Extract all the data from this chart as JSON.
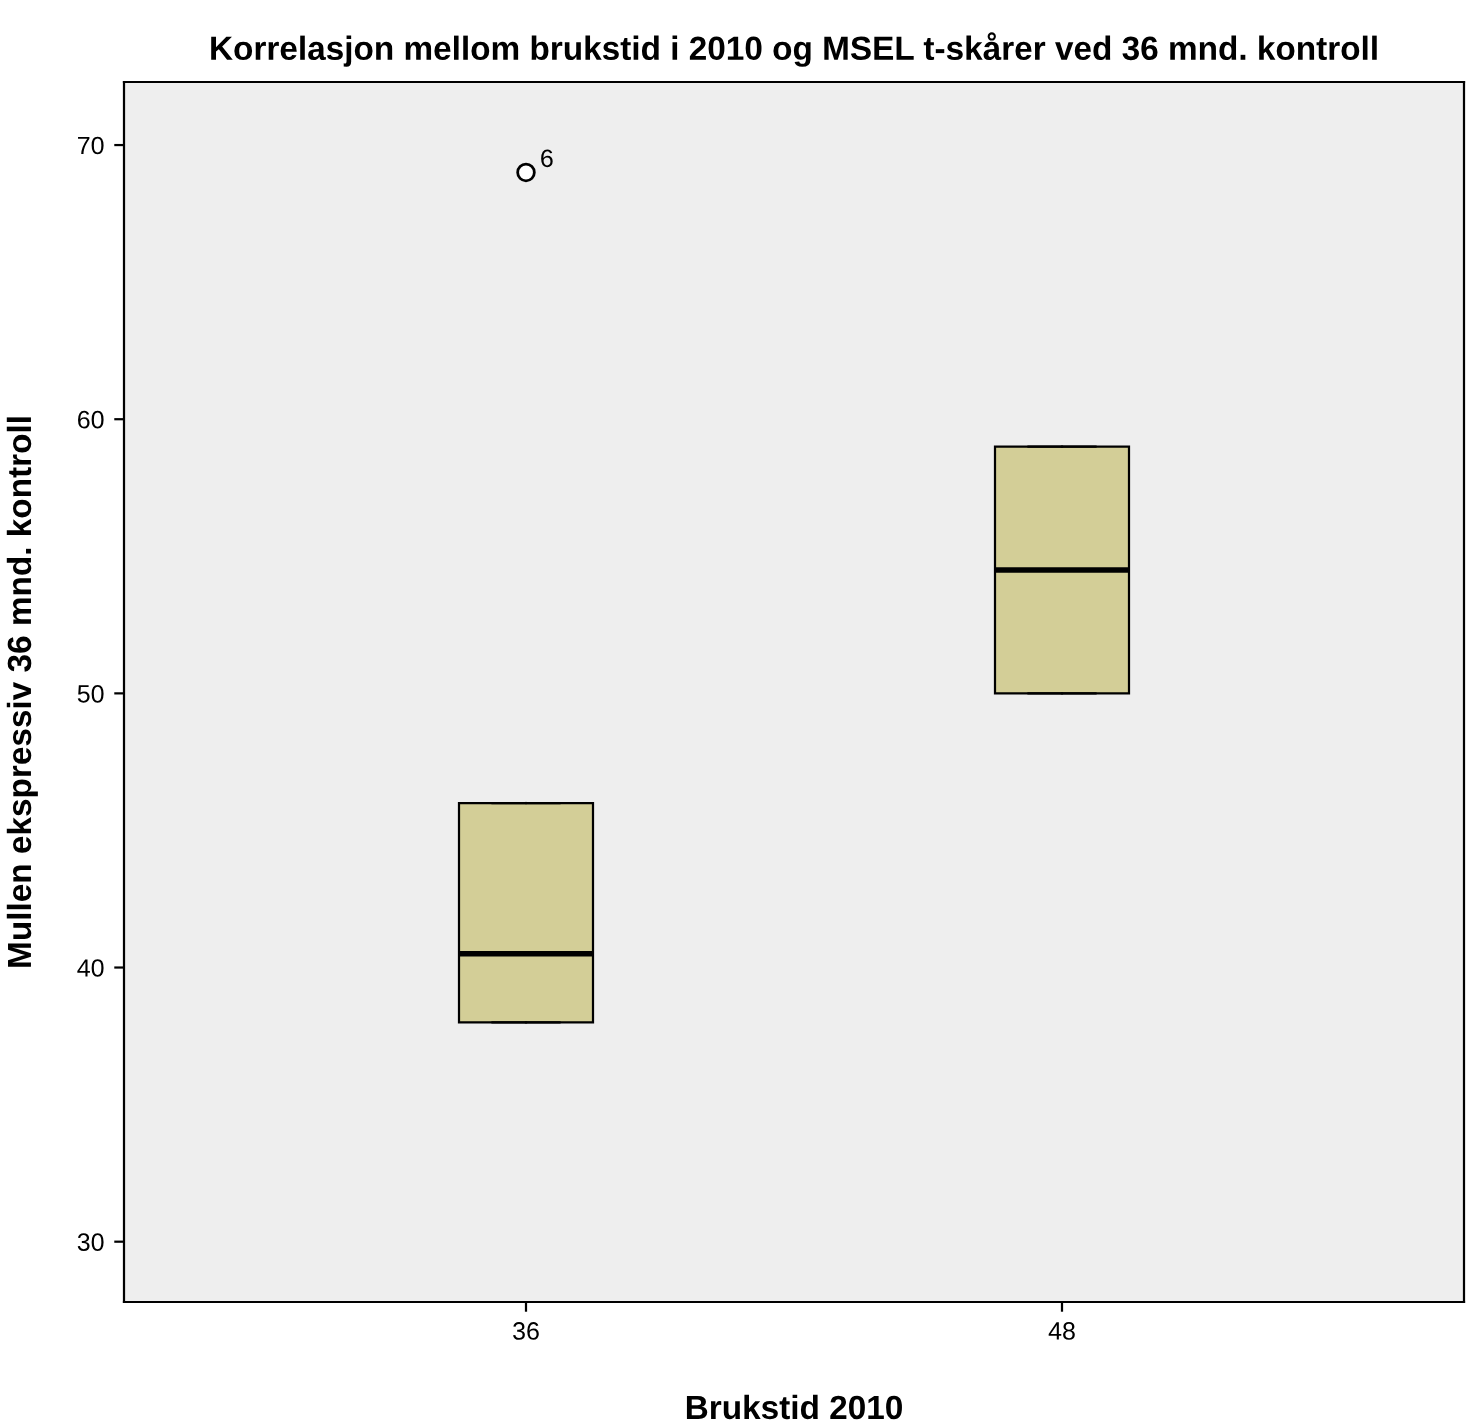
{
  "chart_data": {
    "type": "box",
    "title": "Korrelasjon mellom brukstid i 2010 og MSEL t-skårer ved 36 mnd. kontroll",
    "xlabel": "Brukstid 2010",
    "ylabel": "Mullen ekspressiv 36 mnd. kontroll",
    "categories": [
      "36",
      "48"
    ],
    "color": "#d3ce97",
    "boxes": [
      {
        "low": 38,
        "q1": 38,
        "median": 40.5,
        "q3": 46,
        "high": 46,
        "outliers": [
          69
        ]
      },
      {
        "low": 50,
        "q1": 50,
        "median": 54.5,
        "q3": 59,
        "high": 59
      }
    ],
    "annotations": [
      "6"
    ],
    "ylim": [
      27.8,
      72.3
    ],
    "yticks": [
      30,
      40,
      50,
      60,
      70
    ],
    "grid": false,
    "legend": false
  }
}
